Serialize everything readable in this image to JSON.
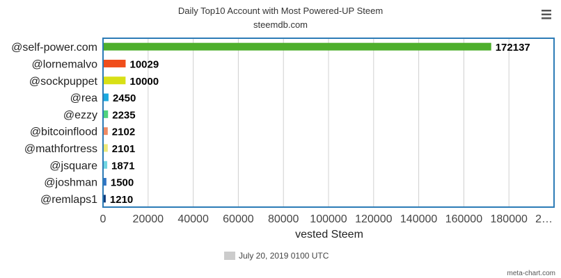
{
  "chart_data": {
    "type": "bar",
    "orientation": "horizontal",
    "title": "Daily Top10 Account with Most Powered-UP Steem",
    "subtitle": "steemdb.com",
    "xlabel": "vested Steem",
    "ylabel": "",
    "xlim": [
      0,
      200000
    ],
    "x_ticks": [
      "0",
      "20000",
      "40000",
      "60000",
      "80000",
      "100000",
      "120000",
      "140000",
      "160000",
      "180000",
      "2…"
    ],
    "grid": true,
    "legend_position": "bottom",
    "categories": [
      "@self-power.com",
      "@lornemalvo",
      "@sockpuppet",
      "@rea",
      "@ezzy",
      "@bitcoinflood",
      "@mathfortress",
      "@jsquare",
      "@joshman",
      "@remlaps1"
    ],
    "series": [
      {
        "name": "July 20, 2019 0100 UTC",
        "values": [
          172137,
          10029,
          10000,
          2450,
          2235,
          2102,
          2101,
          1871,
          1500,
          1210
        ],
        "colors": [
          "#4eaf2c",
          "#f04e1c",
          "#d8e016",
          "#1aa9e0",
          "#4fd27e",
          "#ee8a64",
          "#ede97a",
          "#72d6e2",
          "#2f74c4",
          "#0d3a7a"
        ]
      }
    ],
    "legend_color": "#cccccc"
  },
  "menu_icon": "hamburger-menu-icon",
  "credit": "meta-chart.com"
}
